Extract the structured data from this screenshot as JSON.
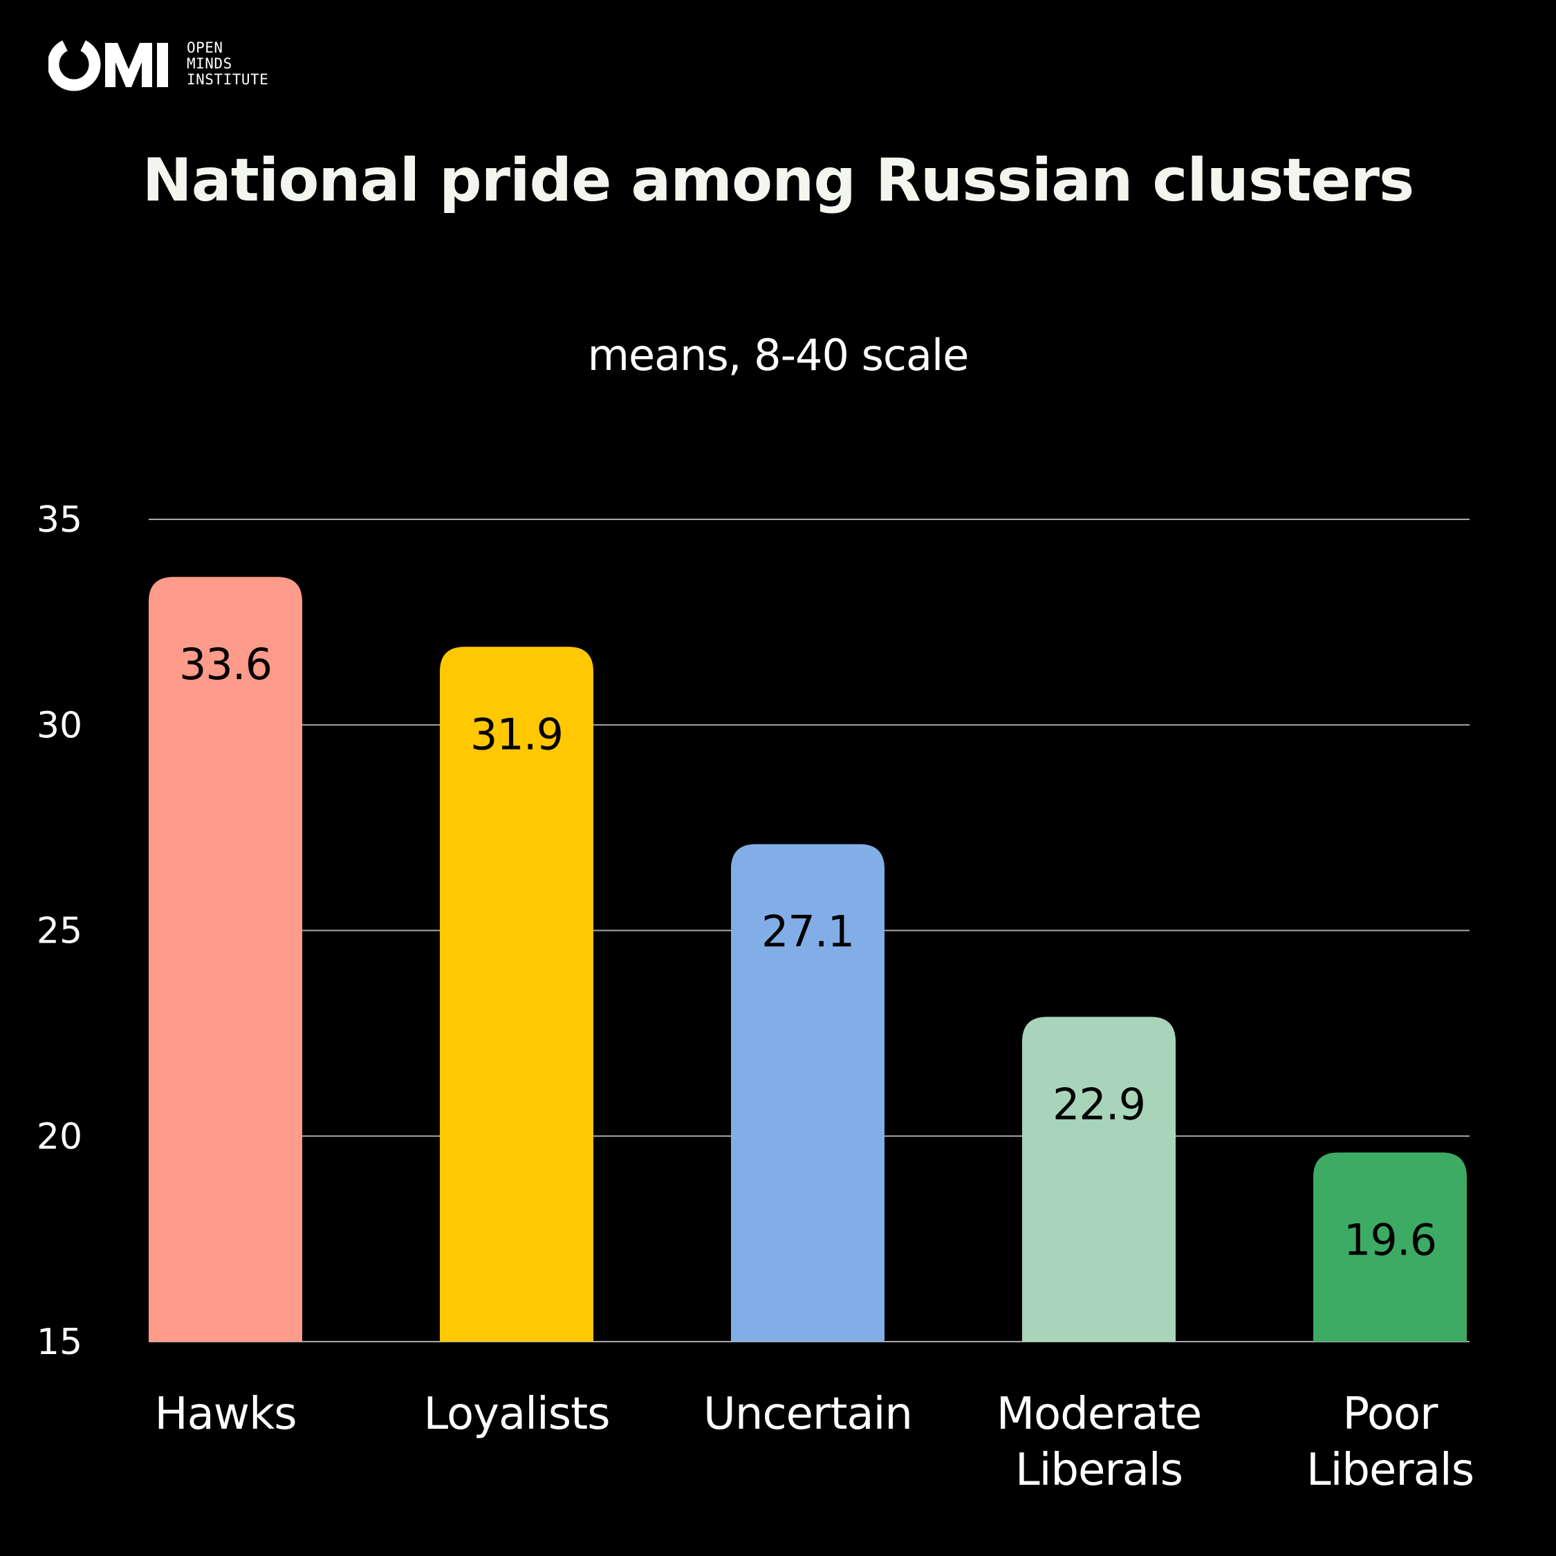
{
  "brand": {
    "mark": "OMI",
    "lines": [
      "OPEN",
      "MINDS",
      "INSTITUTE"
    ]
  },
  "chart_data": {
    "type": "bar",
    "title": "National pride among Russian clusters",
    "subtitle": "means, 8-40 scale",
    "categories": [
      "Hawks",
      "Loyalists",
      "Uncertain",
      "Moderate Liberals",
      "Poor Liberals"
    ],
    "category_lines": [
      [
        "Hawks"
      ],
      [
        "Loyalists"
      ],
      [
        "Uncertain"
      ],
      [
        "Moderate",
        "Liberals"
      ],
      [
        "Poor",
        "Liberals"
      ]
    ],
    "values": [
      33.6,
      31.9,
      27.1,
      22.9,
      19.6
    ],
    "data_labels": [
      "33.6",
      "31.9",
      "27.1",
      "22.9",
      "19.6"
    ],
    "colors": [
      "#ff9b8a",
      "#ffc800",
      "#81aee6",
      "#a8d5b9",
      "#3dab64"
    ],
    "ylim": [
      15,
      35
    ],
    "yticks": [
      15,
      20,
      25,
      30,
      35
    ],
    "grid": true,
    "legend": "none",
    "xlabel": "",
    "ylabel": ""
  }
}
